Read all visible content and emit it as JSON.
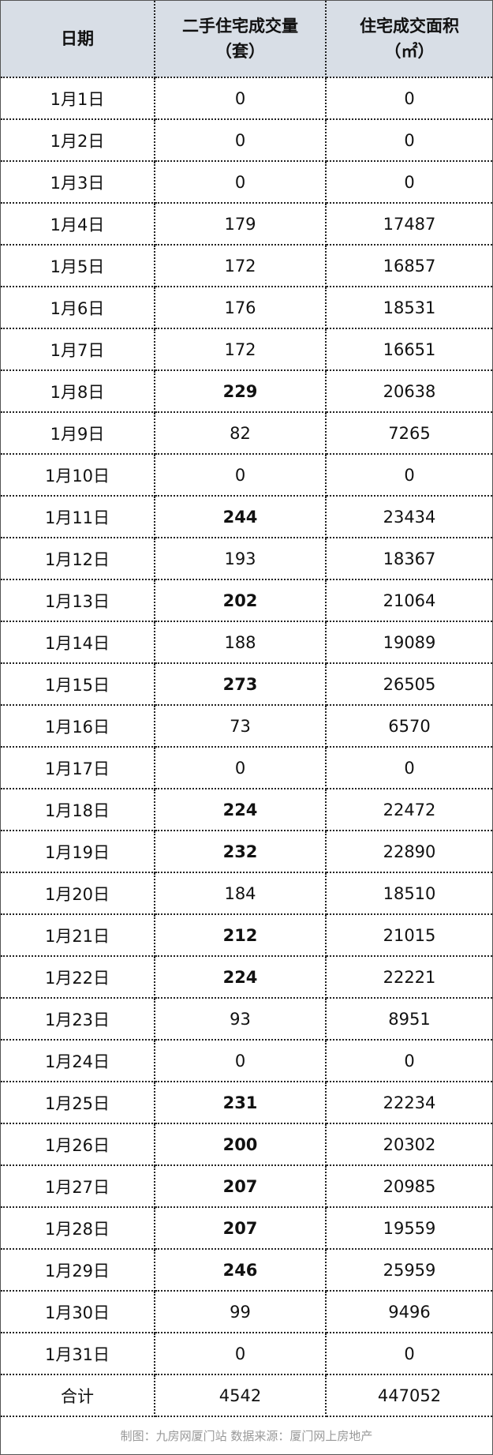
{
  "headers": {
    "date": "日期",
    "units_line1": "二手住宅成交量",
    "units_line2": "（套）",
    "area_line1": "住宅成交面积",
    "area_line2": "（㎡）"
  },
  "rows": [
    {
      "date": "1月1日",
      "units": "0",
      "area": "0"
    },
    {
      "date": "1月2日",
      "units": "0",
      "area": "0"
    },
    {
      "date": "1月3日",
      "units": "0",
      "area": "0"
    },
    {
      "date": "1月4日",
      "units": "179",
      "area": "17487"
    },
    {
      "date": "1月5日",
      "units": "172",
      "area": "16857"
    },
    {
      "date": "1月6日",
      "units": "176",
      "area": "18531"
    },
    {
      "date": "1月7日",
      "units": "172",
      "area": "16651"
    },
    {
      "date": "1月8日",
      "units": "229",
      "area": "20638",
      "bold": true
    },
    {
      "date": "1月9日",
      "units": "82",
      "area": "7265"
    },
    {
      "date": "1月10日",
      "units": "0",
      "area": "0"
    },
    {
      "date": "1月11日",
      "units": "244",
      "area": "23434",
      "bold": true
    },
    {
      "date": "1月12日",
      "units": "193",
      "area": "18367"
    },
    {
      "date": "1月13日",
      "units": "202",
      "area": "21064",
      "bold": true
    },
    {
      "date": "1月14日",
      "units": "188",
      "area": "19089"
    },
    {
      "date": "1月15日",
      "units": "273",
      "area": "26505",
      "bold": true
    },
    {
      "date": "1月16日",
      "units": "73",
      "area": "6570"
    },
    {
      "date": "1月17日",
      "units": "0",
      "area": "0"
    },
    {
      "date": "1月18日",
      "units": "224",
      "area": "22472",
      "bold": true
    },
    {
      "date": "1月19日",
      "units": "232",
      "area": "22890",
      "bold": true
    },
    {
      "date": "1月20日",
      "units": "184",
      "area": "18510"
    },
    {
      "date": "1月21日",
      "units": "212",
      "area": "21015",
      "bold": true
    },
    {
      "date": "1月22日",
      "units": "224",
      "area": "22221",
      "bold": true
    },
    {
      "date": "1月23日",
      "units": "93",
      "area": "8951"
    },
    {
      "date": "1月24日",
      "units": "0",
      "area": "0"
    },
    {
      "date": "1月25日",
      "units": "231",
      "area": "22234",
      "bold": true
    },
    {
      "date": "1月26日",
      "units": "200",
      "area": "20302",
      "bold": true
    },
    {
      "date": "1月27日",
      "units": "207",
      "area": "20985",
      "bold": true
    },
    {
      "date": "1月28日",
      "units": "207",
      "area": "19559",
      "bold": true
    },
    {
      "date": "1月29日",
      "units": "246",
      "area": "25959",
      "bold": true
    },
    {
      "date": "1月30日",
      "units": "99",
      "area": "9496"
    },
    {
      "date": "1月31日",
      "units": "0",
      "area": "0"
    }
  ],
  "total": {
    "label": "合计",
    "units": "4542",
    "area": "447052"
  },
  "footer": "制图：九房网厦门站 数据来源：厦门网上房地产",
  "colors": {
    "header_bg": "#d8dee6",
    "footer_text": "#999999"
  }
}
